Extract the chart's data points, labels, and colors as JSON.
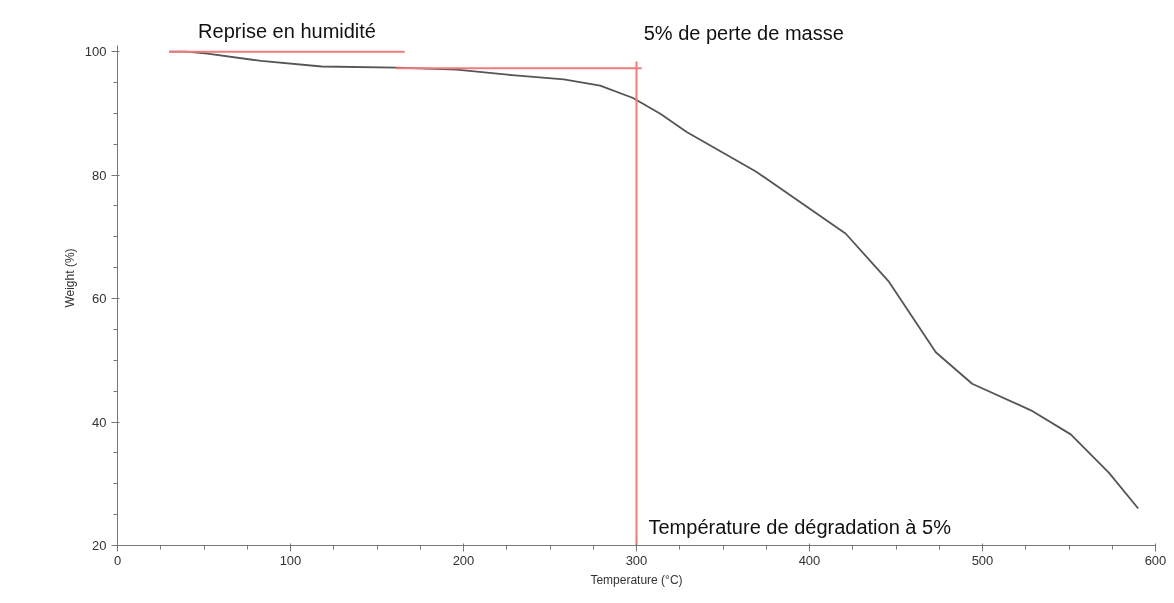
{
  "chart_data": {
    "type": "line",
    "xlabel": "Temperature (°C)",
    "ylabel": "Weight (%)",
    "xlim": [
      0,
      600
    ],
    "ylim": [
      20,
      101
    ],
    "xticks": [
      0,
      {
        "value": 25,
        "label": null
      },
      {
        "value": 50,
        "label": null
      },
      {
        "value": 75,
        "label": null
      },
      100,
      {
        "value": 125,
        "label": null
      },
      {
        "value": 150,
        "label": null
      },
      {
        "value": 175,
        "label": null
      },
      200,
      {
        "value": 225,
        "label": null
      },
      {
        "value": 250,
        "label": null
      },
      {
        "value": 275,
        "label": null
      },
      300,
      {
        "value": 325,
        "label": null
      },
      {
        "value": 350,
        "label": null
      },
      {
        "value": 375,
        "label": null
      },
      400,
      {
        "value": 425,
        "label": null
      },
      {
        "value": 450,
        "label": null
      },
      {
        "value": 475,
        "label": null
      },
      500,
      {
        "value": 525,
        "label": null
      },
      {
        "value": 550,
        "label": null
      },
      {
        "value": 575,
        "label": null
      },
      600
    ],
    "yticks": [
      20,
      {
        "value": 25,
        "label": null
      },
      {
        "value": 30,
        "label": null
      },
      {
        "value": 35,
        "label": null
      },
      40,
      {
        "value": 45,
        "label": null
      },
      {
        "value": 50,
        "label": null
      },
      {
        "value": 55,
        "label": null
      },
      60,
      {
        "value": 65,
        "label": null
      },
      {
        "value": 70,
        "label": null
      },
      {
        "value": 75,
        "label": null
      },
      80,
      {
        "value": 85,
        "label": null
      },
      {
        "value": 90,
        "label": null
      },
      {
        "value": 95,
        "label": null
      },
      100
    ],
    "grid": false,
    "marker": "none",
    "line_style": "solid",
    "series": [
      {
        "color": "#555555",
        "x": [
          30,
          40,
          52,
          83,
          118,
          161,
          196,
          228,
          258,
          279,
          298,
          314,
          329,
          369,
          421,
          446,
          473,
          494,
          528,
          551,
          573,
          590
        ],
        "values": [
          100,
          100,
          99.7,
          98.5,
          97.6,
          97.4,
          97.1,
          96.2,
          95.5,
          94.5,
          92.5,
          89.9,
          87,
          80.6,
          70.5,
          62.7,
          51.3,
          46.2,
          41.9,
          38,
          31.8,
          26
        ]
      },
      {
        "color": "#f07b7b",
        "x": [
          30,
          166
        ],
        "values": [
          100,
          100
        ]
      },
      {
        "color": "#f07b7b",
        "x": [
          161,
          303
        ],
        "values": [
          97.3,
          97.3
        ]
      },
      {
        "color": "#f07b7b",
        "x": [
          300,
          300
        ],
        "values": [
          98.4,
          20
        ]
      }
    ],
    "annotations": [
      "Reprise en humidité",
      "5% de perte de masse",
      "Température de dégradation à 5%"
    ]
  }
}
